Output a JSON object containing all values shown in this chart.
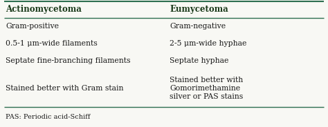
{
  "col1_header": "Actinomycetoma",
  "col2_header": "Eumycetoma",
  "col1_rows": [
    "Gram-positive",
    "0.5-1 μm-wide filaments",
    "Septate fine-branching filaments",
    "Stained better with Gram stain"
  ],
  "col2_rows": [
    "Gram-negative",
    "2-5 μm-wide hyphae",
    "Septate hyphae",
    "Stained better with\nGomorimethamine\nsilver or PAS stains"
  ],
  "footnote": "PAS: Periodic acid-Schiff",
  "header_text_color": "#1a3a1a",
  "text_color": "#1a1a1a",
  "bg_color": "#f8f8f4",
  "line_color": "#2e6e50",
  "header_fontsize": 8.5,
  "body_fontsize": 7.8,
  "footnote_fontsize": 7.0,
  "col_split": 0.5
}
